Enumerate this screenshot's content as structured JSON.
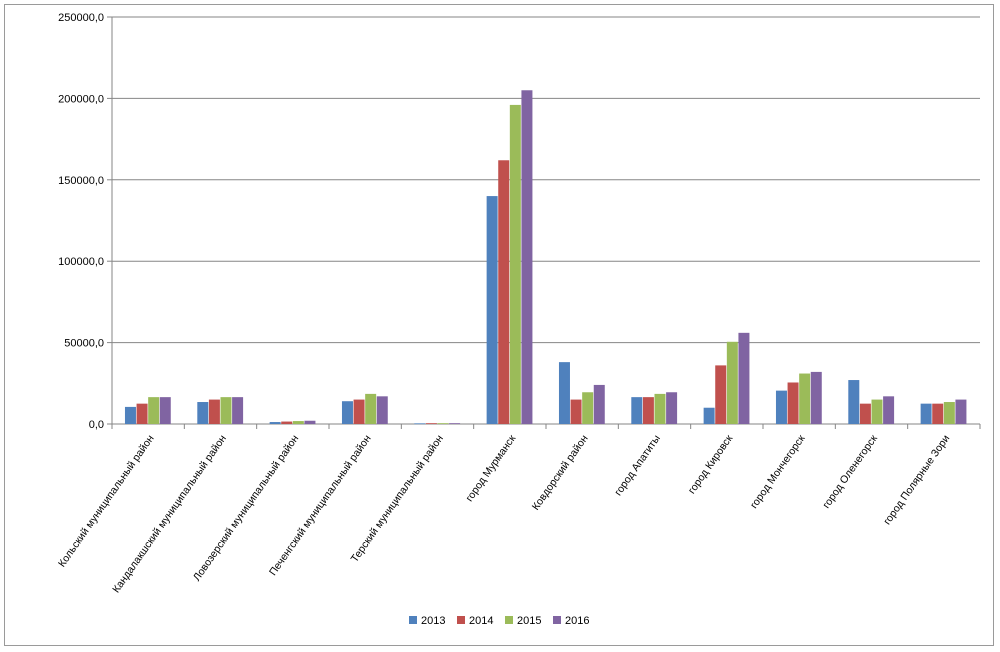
{
  "chart_data": {
    "type": "bar",
    "title": "",
    "xlabel": "",
    "ylabel": "",
    "ylim": [
      0,
      250000
    ],
    "yticks": [
      "0,0",
      "50000,0",
      "100000,0",
      "150000,0",
      "200000,0",
      "250000,0"
    ],
    "grid": true,
    "legend_position": "bottom",
    "categories": [
      "Кольский муниципальный район",
      "Кандалакшский муниципальный район",
      "Ловозерский муниципальный район",
      "Печенгский муниципальный район",
      "Терский муниципальный район",
      "город Мурманск",
      "Ковдорский район",
      "город Апатиты",
      "город Кировск",
      "город Мончегорск",
      "город Оленегорск",
      "город Полярные Зори"
    ],
    "series": [
      {
        "name": "2013",
        "color": "#4f81bd",
        "values": [
          10500,
          13500,
          1200,
          14000,
          400,
          140000,
          38000,
          16500,
          10000,
          20500,
          27000,
          12500
        ]
      },
      {
        "name": "2014",
        "color": "#c0504d",
        "values": [
          12500,
          15000,
          1500,
          15000,
          500,
          162000,
          15000,
          16500,
          36000,
          25500,
          12500,
          12500
        ]
      },
      {
        "name": "2015",
        "color": "#9bbb59",
        "values": [
          16500,
          16500,
          1800,
          18500,
          500,
          196000,
          19500,
          18500,
          50500,
          31000,
          15000,
          13500
        ]
      },
      {
        "name": "2016",
        "color": "#8064a2",
        "values": [
          16500,
          16500,
          2000,
          17000,
          500,
          205000,
          24000,
          19500,
          56000,
          32000,
          17000,
          15000
        ]
      }
    ]
  }
}
